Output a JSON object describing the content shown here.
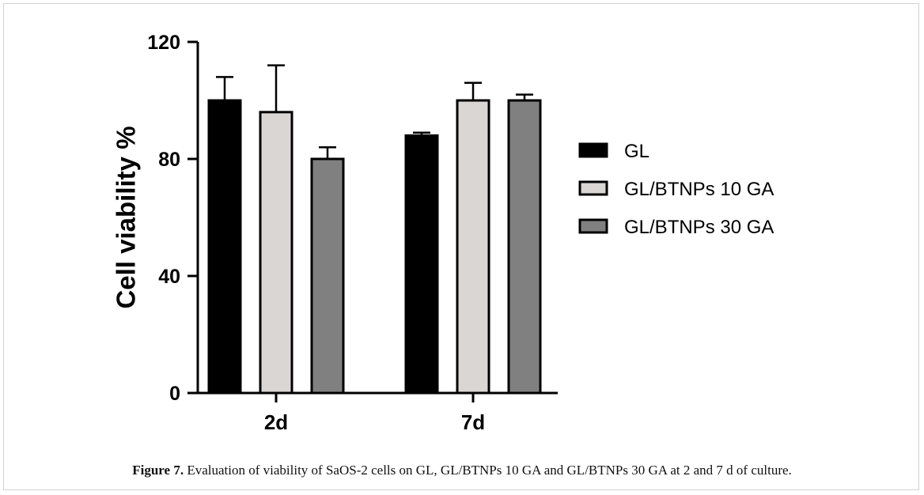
{
  "chart_data": {
    "type": "bar",
    "categories": [
      "2d",
      "7d"
    ],
    "ylabel": "Cell viability %",
    "xlabel": "",
    "ylim": [
      0,
      120
    ],
    "yticks": [
      0,
      40,
      80,
      120
    ],
    "legend_position": "right",
    "series": [
      {
        "name": "GL",
        "values": [
          100,
          88
        ],
        "errors": [
          8,
          1
        ],
        "color": "#000000"
      },
      {
        "name": "GL/BTNPs 10 GA",
        "values": [
          96,
          100
        ],
        "errors": [
          16,
          6
        ],
        "color": "#d9d6d3"
      },
      {
        "name": "GL/BTNPs 30 GA",
        "values": [
          80,
          100
        ],
        "errors": [
          4,
          2
        ],
        "color": "#808080"
      }
    ]
  },
  "caption": {
    "label": "Figure 7.",
    "text": " Evaluation of viability of SaOS-2 cells on GL, GL/BTNPs 10 GA and GL/BTNPs 30 GA at 2 and 7 d of culture."
  }
}
